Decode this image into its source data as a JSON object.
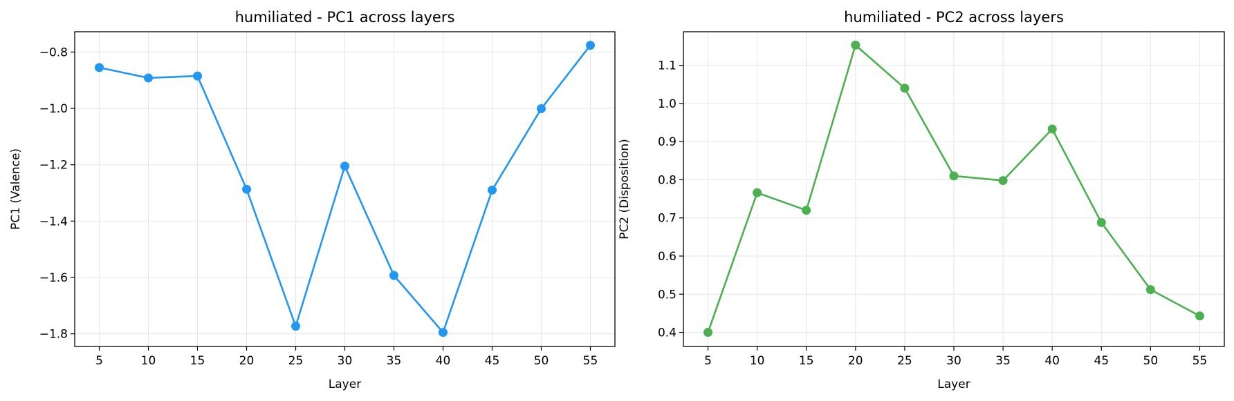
{
  "chart_data": [
    {
      "type": "line",
      "title": "humiliated - PC1 across layers",
      "xlabel": "Layer",
      "ylabel": "PC1 (Valence)",
      "x": [
        5,
        10,
        15,
        20,
        25,
        30,
        35,
        40,
        45,
        50,
        55
      ],
      "x_ticks": [
        "5",
        "10",
        "15",
        "20",
        "25",
        "30",
        "35",
        "40",
        "45",
        "50",
        "55"
      ],
      "y_ticks": [
        -0.8,
        -1.0,
        -1.2,
        -1.4,
        -1.6,
        -1.8
      ],
      "y_tick_labels": [
        "−0.8",
        "−1.0",
        "−1.2",
        "−1.4",
        "−1.6",
        "−1.8"
      ],
      "xlim": [
        2.5,
        57.5
      ],
      "ylim": [
        -1.845,
        -0.728
      ],
      "grid": true,
      "color": "#2196F3",
      "series": [
        {
          "values": [
            -0.855,
            -0.892,
            -0.885,
            -1.287,
            -1.773,
            -1.205,
            -1.593,
            -1.795,
            -1.29,
            -1.001,
            -0.776
          ]
        }
      ]
    },
    {
      "type": "line",
      "title": "humiliated - PC2 across layers",
      "xlabel": "Layer",
      "ylabel": "PC2 (Disposition)",
      "x": [
        5,
        10,
        15,
        20,
        25,
        30,
        35,
        40,
        45,
        50,
        55
      ],
      "x_ticks": [
        "5",
        "10",
        "15",
        "20",
        "25",
        "30",
        "35",
        "40",
        "45",
        "50",
        "55"
      ],
      "y_ticks": [
        0.4,
        0.5,
        0.6,
        0.7,
        0.8,
        0.9,
        1.0,
        1.1
      ],
      "y_tick_labels": [
        "0.4",
        "0.5",
        "0.6",
        "0.7",
        "0.8",
        "0.9",
        "1.0",
        "1.1"
      ],
      "xlim": [
        2.5,
        57.5
      ],
      "ylim": [
        0.363,
        1.188
      ],
      "grid": true,
      "color": "#4CAF50",
      "series": [
        {
          "values": [
            0.4,
            0.766,
            0.72,
            1.153,
            1.04,
            0.81,
            0.798,
            0.933,
            0.688,
            0.512,
            0.443
          ]
        }
      ]
    }
  ]
}
